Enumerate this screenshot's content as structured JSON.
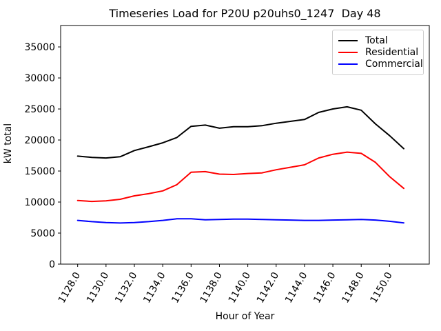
{
  "figure": {
    "title": "Timeseries Load for P20U p20uhs0_1247  Day 48",
    "xlabel": "Hour of Year",
    "ylabel": "kW total"
  },
  "chart_data": {
    "type": "line",
    "title": "Timeseries Load for P20U p20uhs0_1247  Day 48",
    "xlabel": "Hour of Year",
    "ylabel": "kW total",
    "x": [
      1128,
      1129,
      1130,
      1131,
      1132,
      1133,
      1134,
      1135,
      1136,
      1137,
      1138,
      1139,
      1140,
      1141,
      1142,
      1143,
      1144,
      1145,
      1146,
      1147,
      1148,
      1149,
      1150,
      1151
    ],
    "series": [
      {
        "name": "Total",
        "color": "#000000",
        "values": [
          17400,
          17200,
          17100,
          17300,
          18300,
          18900,
          19550,
          20400,
          22200,
          22400,
          21900,
          22150,
          22150,
          22300,
          22700,
          23000,
          23300,
          24450,
          25000,
          25350,
          24800,
          22600,
          20700,
          18600
        ]
      },
      {
        "name": "Residential",
        "color": "#ff0000",
        "values": [
          10250,
          10100,
          10200,
          10450,
          11000,
          11350,
          11800,
          12800,
          14800,
          14900,
          14500,
          14450,
          14600,
          14700,
          15200,
          15600,
          16000,
          17100,
          17700,
          18050,
          17850,
          16400,
          14100,
          12200
        ]
      },
      {
        "name": "Commercial",
        "color": "#0000ff",
        "values": [
          7050,
          6850,
          6700,
          6620,
          6700,
          6850,
          7050,
          7300,
          7300,
          7150,
          7200,
          7250,
          7250,
          7200,
          7150,
          7100,
          7050,
          7050,
          7100,
          7150,
          7200,
          7100,
          6900,
          6650
        ]
      }
    ],
    "xticks": [
      1128,
      1130,
      1132,
      1134,
      1136,
      1138,
      1140,
      1142,
      1144,
      1146,
      1148,
      1150
    ],
    "xtick_labels": [
      "1128.0",
      "1130.0",
      "1132.0",
      "1134.0",
      "1136.0",
      "1138.0",
      "1140.0",
      "1142.0",
      "1144.0",
      "1146.0",
      "1148.0",
      "1150.0"
    ],
    "yticks": [
      0,
      5000,
      10000,
      15000,
      20000,
      25000,
      30000,
      35000
    ],
    "ytick_labels": [
      "0",
      "5000",
      "10000",
      "15000",
      "20000",
      "25000",
      "30000",
      "35000"
    ],
    "xlim": [
      1126.8,
      1152.8
    ],
    "ylim": [
      0,
      38450
    ],
    "grid": false,
    "legend_position": "upper right",
    "line_width": 2
  }
}
